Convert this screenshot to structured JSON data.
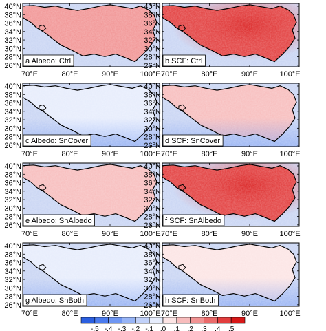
{
  "figure": {
    "panels": [
      {
        "id": "a",
        "label": "a Albedo: Ctrl",
        "mean": 0.18,
        "variant": "albedo"
      },
      {
        "id": "b",
        "label": "b SCF: Ctrl",
        "mean": 0.34,
        "variant": "scf"
      },
      {
        "id": "c",
        "label": "c Albedo: SnCover",
        "mean": -0.03,
        "variant": "albedo"
      },
      {
        "id": "d",
        "label": "d SCF: SnCover",
        "mean": 0.1,
        "variant": "scf"
      },
      {
        "id": "e",
        "label": "e Albedo: SnAlbedo",
        "mean": 0.16,
        "variant": "albedo"
      },
      {
        "id": "f",
        "label": "f SCF: SnAlbedo",
        "mean": 0.34,
        "variant": "scf"
      },
      {
        "id": "g",
        "label": "g Albedo: SnBoth",
        "mean": -0.04,
        "variant": "albedo"
      },
      {
        "id": "h",
        "label": "h SCF: SnBoth",
        "mean": 0.08,
        "variant": "scf"
      }
    ],
    "lat_ticks": [
      "40°N",
      "38°N",
      "36°N",
      "34°N",
      "32°N",
      "30°N",
      "28°N",
      "26°N"
    ],
    "lon_ticks": [
      "70°E",
      "80°E",
      "90°E",
      "100°E"
    ],
    "colorbar": {
      "labels": [
        "-.5",
        "-.4",
        "-.3",
        "-.2",
        "-.1",
        ".0",
        ".1",
        ".2",
        ".3",
        ".4",
        ".5"
      ],
      "range": [
        -0.5,
        0.5
      ],
      "colors": [
        "#2b5fe0",
        "#4b7bee",
        "#6f97f3",
        "#97b4f6",
        "#c1d1f9",
        "#e6ecfc",
        "#fce4e4",
        "#f7bcbc",
        "#f19393",
        "#ea6a6a",
        "#e23d3d",
        "#d81818"
      ]
    },
    "background_color": "#c8d4f3"
  }
}
